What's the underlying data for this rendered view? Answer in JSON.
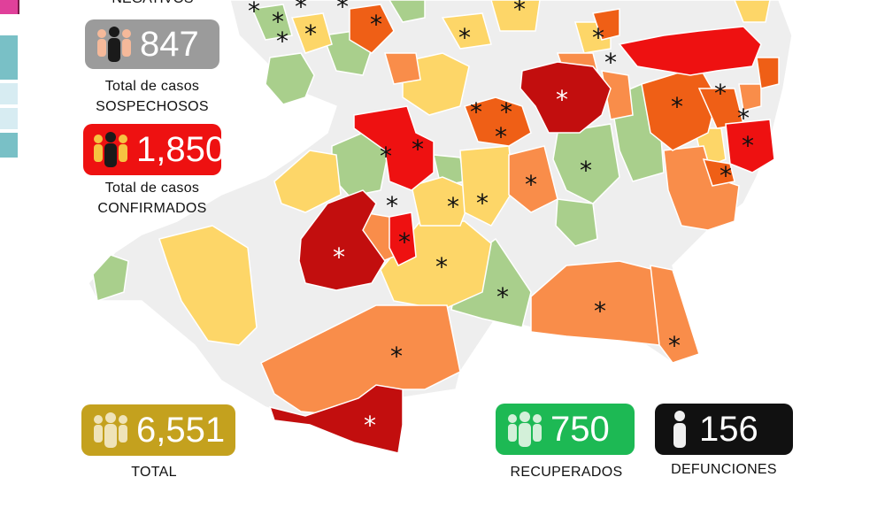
{
  "header": {
    "partial_label": "NEGATIVOS"
  },
  "stats": {
    "suspected": {
      "value": "847",
      "label_line1": "Total de casos",
      "label_line2": "SOSPECHOSOS",
      "color": "#9b9b9b"
    },
    "confirmed": {
      "value": "1,850",
      "label_line1": "Total de casos",
      "label_line2": "CONFIRMADOS",
      "color": "#ee1111"
    },
    "total": {
      "value": "6,551",
      "label": "TOTAL",
      "color": "#c4a11e"
    },
    "recovered": {
      "value": "750",
      "label": "RECUPERADOS",
      "color": "#1db954"
    },
    "deaths": {
      "value": "156",
      "label": "DEFUNCIONES",
      "color": "#111111"
    }
  },
  "map": {
    "marker_symbol": "*",
    "colors": {
      "none": "#eeeeee",
      "level1": "#a9cf8c",
      "level2": "#fdd668",
      "level3": "#f98d4a",
      "level4": "#ef5f16",
      "level5": "#ee1111",
      "level6": "#c20e0e"
    }
  }
}
